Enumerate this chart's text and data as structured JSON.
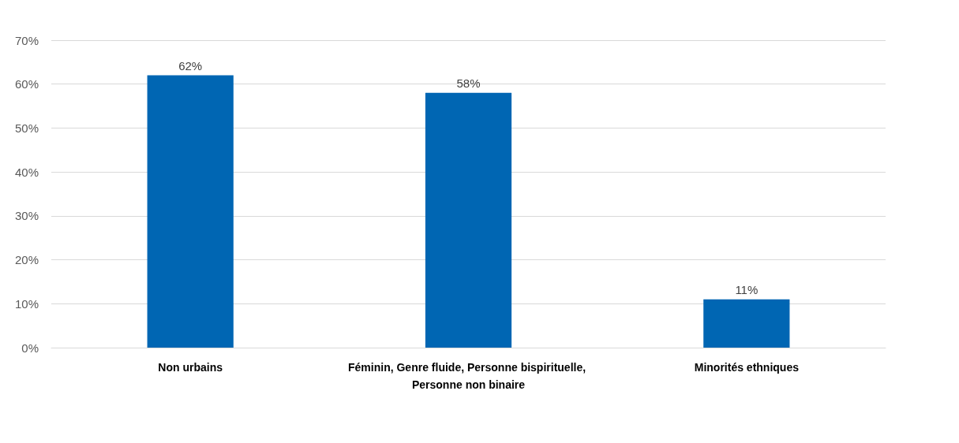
{
  "chart_data": {
    "type": "bar",
    "categories": [
      "Non urbains",
      "Féminin, Genre fluide, Personne bispirituelle, Personne non binaire",
      "Minorités ethniques"
    ],
    "values": [
      62,
      58,
      11
    ],
    "value_labels": [
      "62%",
      "58%",
      "11%"
    ],
    "color": "#0066b3",
    "ylim": [
      0,
      70
    ],
    "yticks": [
      {
        "value": 0,
        "label": "0%"
      },
      {
        "value": 10,
        "label": "10%"
      },
      {
        "value": 20,
        "label": "20%"
      },
      {
        "value": 30,
        "label": "30%"
      },
      {
        "value": 40,
        "label": "40%"
      },
      {
        "value": 50,
        "label": "50%"
      },
      {
        "value": 60,
        "label": "60%"
      },
      {
        "value": 70,
        "label": "70%"
      }
    ],
    "grid": "y"
  }
}
